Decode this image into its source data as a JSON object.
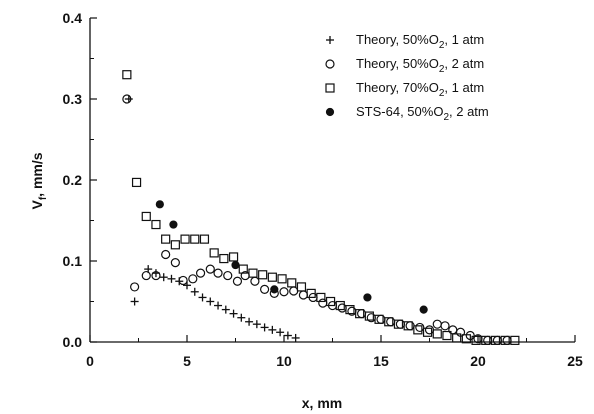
{
  "chart_data": {
    "type": "scatter",
    "xlabel": "x, mm",
    "ylabel": "V_f, mm/s",
    "xlim": [
      0,
      25
    ],
    "ylim": [
      0,
      0.4
    ],
    "x_ticks": [
      "0",
      "5",
      "10",
      "15",
      "20",
      "25"
    ],
    "y_ticks": [
      "0.0",
      "0.1",
      "0.2",
      "0.3",
      "0.4"
    ],
    "grid": false,
    "legend_position": "top-right",
    "series": [
      {
        "name": "Theory, 50%O2, 1 atm",
        "label_main": "Theory, 50%O",
        "label_sub": "2",
        "label_rest": ", 1 atm",
        "marker": "plus",
        "points": [
          [
            2.0,
            0.3
          ],
          [
            2.3,
            0.05
          ],
          [
            3.0,
            0.09
          ],
          [
            3.4,
            0.085
          ],
          [
            3.8,
            0.08
          ],
          [
            4.2,
            0.078
          ],
          [
            4.6,
            0.075
          ],
          [
            5.0,
            0.07
          ],
          [
            5.4,
            0.062
          ],
          [
            5.8,
            0.055
          ],
          [
            6.2,
            0.05
          ],
          [
            6.6,
            0.045
          ],
          [
            7.0,
            0.04
          ],
          [
            7.4,
            0.035
          ],
          [
            7.8,
            0.03
          ],
          [
            8.2,
            0.025
          ],
          [
            8.6,
            0.022
          ],
          [
            9.0,
            0.018
          ],
          [
            9.4,
            0.015
          ],
          [
            9.8,
            0.012
          ],
          [
            10.2,
            0.008
          ],
          [
            10.6,
            0.005
          ]
        ]
      },
      {
        "name": "Theory, 50%O2, 2 atm",
        "label_main": "Theory, 50%O",
        "label_sub": "2",
        "label_rest": ", 2 atm",
        "marker": "circle",
        "points": [
          [
            1.9,
            0.3
          ],
          [
            2.3,
            0.068
          ],
          [
            2.9,
            0.082
          ],
          [
            3.4,
            0.082
          ],
          [
            3.9,
            0.108
          ],
          [
            4.4,
            0.098
          ],
          [
            4.8,
            0.076
          ],
          [
            5.3,
            0.078
          ],
          [
            5.7,
            0.085
          ],
          [
            6.2,
            0.09
          ],
          [
            6.6,
            0.085
          ],
          [
            7.1,
            0.082
          ],
          [
            7.6,
            0.075
          ],
          [
            8.0,
            0.082
          ],
          [
            8.5,
            0.075
          ],
          [
            9.0,
            0.065
          ],
          [
            9.5,
            0.06
          ],
          [
            10.0,
            0.062
          ],
          [
            10.5,
            0.063
          ],
          [
            11.0,
            0.058
          ],
          [
            11.5,
            0.055
          ],
          [
            12.0,
            0.048
          ],
          [
            12.5,
            0.045
          ],
          [
            13.0,
            0.042
          ],
          [
            13.5,
            0.038
          ],
          [
            14.0,
            0.035
          ],
          [
            14.5,
            0.03
          ],
          [
            15.0,
            0.028
          ],
          [
            15.5,
            0.025
          ],
          [
            16.0,
            0.022
          ],
          [
            16.5,
            0.02
          ],
          [
            17.0,
            0.018
          ],
          [
            17.5,
            0.015
          ],
          [
            17.9,
            0.022
          ],
          [
            18.3,
            0.02
          ],
          [
            18.7,
            0.015
          ],
          [
            19.1,
            0.012
          ],
          [
            19.6,
            0.008
          ],
          [
            20.0,
            0.004
          ],
          [
            20.5,
            0.002
          ],
          [
            21.0,
            0.002
          ],
          [
            21.5,
            0.002
          ]
        ]
      },
      {
        "name": "Theory, 70%O2, 1 atm",
        "label_main": "Theory, 70%O",
        "label_sub": "2",
        "label_rest": ", 1 atm",
        "marker": "square",
        "points": [
          [
            1.9,
            0.33
          ],
          [
            2.4,
            0.197
          ],
          [
            2.9,
            0.155
          ],
          [
            3.4,
            0.145
          ],
          [
            3.9,
            0.127
          ],
          [
            4.4,
            0.12
          ],
          [
            4.9,
            0.127
          ],
          [
            5.4,
            0.127
          ],
          [
            5.9,
            0.127
          ],
          [
            6.4,
            0.11
          ],
          [
            6.9,
            0.103
          ],
          [
            7.4,
            0.105
          ],
          [
            7.9,
            0.09
          ],
          [
            8.4,
            0.085
          ],
          [
            8.9,
            0.083
          ],
          [
            9.4,
            0.08
          ],
          [
            9.9,
            0.078
          ],
          [
            10.4,
            0.073
          ],
          [
            10.9,
            0.068
          ],
          [
            11.4,
            0.06
          ],
          [
            11.9,
            0.055
          ],
          [
            12.4,
            0.05
          ],
          [
            12.9,
            0.045
          ],
          [
            13.4,
            0.04
          ],
          [
            13.9,
            0.035
          ],
          [
            14.4,
            0.032
          ],
          [
            14.9,
            0.028
          ],
          [
            15.4,
            0.025
          ],
          [
            15.9,
            0.022
          ],
          [
            16.4,
            0.02
          ],
          [
            16.9,
            0.015
          ],
          [
            17.4,
            0.012
          ],
          [
            17.9,
            0.01
          ],
          [
            18.4,
            0.008
          ],
          [
            18.9,
            0.005
          ],
          [
            19.4,
            0.004
          ],
          [
            19.9,
            0.002
          ],
          [
            20.4,
            0.002
          ],
          [
            20.9,
            0.002
          ],
          [
            21.4,
            0.002
          ],
          [
            21.9,
            0.002
          ]
        ]
      },
      {
        "name": "STS-64, 50%O2, 2 atm",
        "label_main": "STS-64, 50%O",
        "label_sub": "2",
        "label_rest": ", 2 atm",
        "marker": "filled-circle",
        "points": [
          [
            3.6,
            0.17
          ],
          [
            4.3,
            0.145
          ],
          [
            7.5,
            0.095
          ],
          [
            9.5,
            0.065
          ],
          [
            14.3,
            0.055
          ],
          [
            17.2,
            0.04
          ]
        ]
      }
    ]
  }
}
